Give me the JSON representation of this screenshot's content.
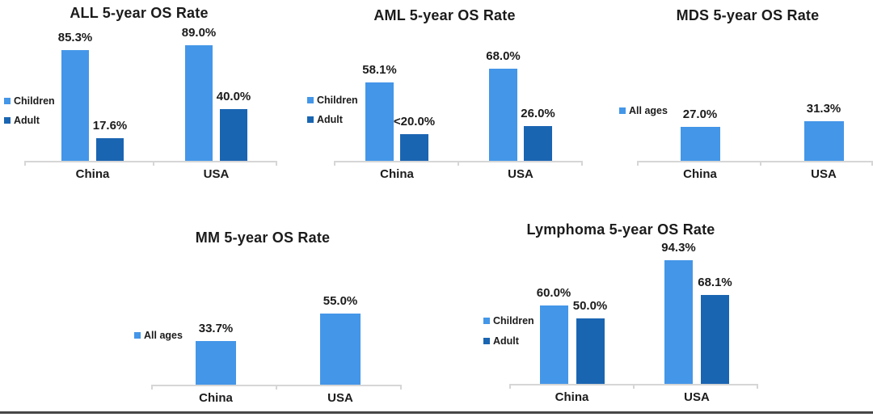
{
  "page": {
    "background": "#ffffff",
    "bottom_border_color": "#474747",
    "text_color": "#1b1b1b",
    "axis_color": "#d6d6d6"
  },
  "colors": {
    "children_light_blue": "#4496e8",
    "adult_dark_blue": "#1a65b2",
    "all_ages_light_blue": "#4496e8"
  },
  "chart_data": [
    {
      "id": "all",
      "type": "bar",
      "title": "ALL 5-year OS Rate",
      "categories": [
        "China",
        "USA"
      ],
      "series": [
        {
          "name": "Children",
          "color": "#4496e8",
          "values": [
            85.3,
            89.0
          ],
          "labels": [
            "85.3%",
            "89.0%"
          ]
        },
        {
          "name": "Adult",
          "color": "#1a65b2",
          "values": [
            17.6,
            40.0
          ],
          "labels": [
            "17.6%",
            "40.0%"
          ]
        }
      ],
      "ylim": [
        0,
        100
      ],
      "grid": false,
      "legend_position": "left",
      "value_suffix": "%"
    },
    {
      "id": "aml",
      "type": "bar",
      "title": "AML 5-year OS Rate",
      "categories": [
        "China",
        "USA"
      ],
      "series": [
        {
          "name": "Children",
          "color": "#4496e8",
          "values": [
            58.1,
            68.0
          ],
          "labels": [
            "58.1%",
            "68.0%"
          ]
        },
        {
          "name": "Adult",
          "color": "#1a65b2",
          "values": [
            20.0,
            26.0
          ],
          "labels": [
            "<20.0%",
            "26.0%"
          ]
        }
      ],
      "ylim": [
        0,
        100
      ],
      "grid": false,
      "legend_position": "left",
      "value_suffix": "%"
    },
    {
      "id": "mds",
      "type": "bar",
      "title": "MDS 5-year OS Rate",
      "categories": [
        "China",
        "USA"
      ],
      "series": [
        {
          "name": "All ages",
          "color": "#4496e8",
          "values": [
            27.0,
            31.3
          ],
          "labels": [
            "27.0%",
            "31.3%"
          ]
        }
      ],
      "ylim": [
        0,
        100
      ],
      "grid": false,
      "legend_position": "left",
      "value_suffix": "%"
    },
    {
      "id": "mm",
      "type": "bar",
      "title": "MM 5-year OS Rate",
      "categories": [
        "China",
        "USA"
      ],
      "series": [
        {
          "name": "All ages",
          "color": "#4496e8",
          "values": [
            33.7,
            55.0
          ],
          "labels": [
            "33.7%",
            "55.0%"
          ]
        }
      ],
      "ylim": [
        0,
        100
      ],
      "grid": false,
      "legend_position": "left",
      "value_suffix": "%"
    },
    {
      "id": "lymphoma",
      "type": "bar",
      "title": "Lymphoma 5-year OS Rate",
      "categories": [
        "China",
        "USA"
      ],
      "series": [
        {
          "name": "Children",
          "color": "#4496e8",
          "values": [
            60.0,
            94.3
          ],
          "labels": [
            "60.0%",
            "94.3%"
          ]
        },
        {
          "name": "Adult",
          "color": "#1a65b2",
          "values": [
            50.0,
            68.1
          ],
          "labels": [
            "50.0%",
            "68.1%"
          ]
        }
      ],
      "ylim": [
        0,
        100
      ],
      "grid": false,
      "legend_position": "left",
      "value_suffix": "%"
    }
  ]
}
